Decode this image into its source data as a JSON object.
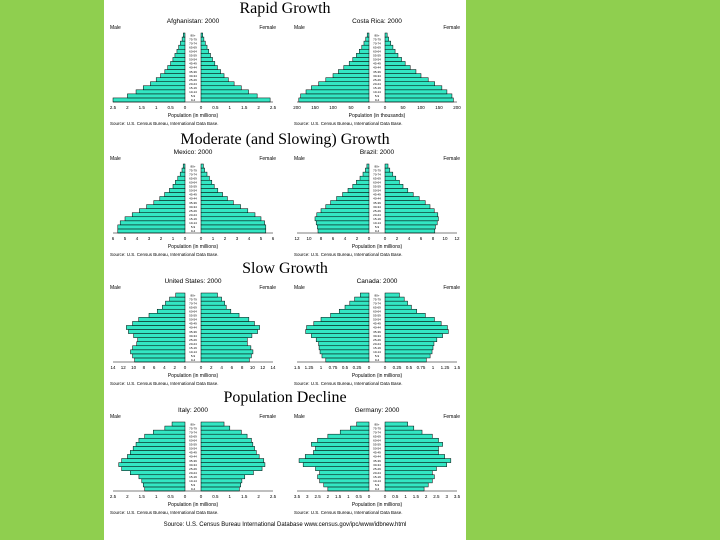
{
  "colors": {
    "background": "#8fcf4f",
    "sheet": "#ffffff",
    "bar_fill": "#33e6c3",
    "bar_stroke": "#000000"
  },
  "sections": [
    {
      "title": "Rapid Growth"
    },
    {
      "title": "Moderate (and Slowing) Growth"
    },
    {
      "title": "Slow Growth"
    },
    {
      "title": "Population Decline"
    }
  ],
  "footer_source": "Source: U.S. Census Bureau International Database www.census.gov/ipc/www/idbnew.html",
  "chart_data": [
    {
      "type": "bar",
      "title": "Afghanistan: 2000",
      "male_label": "Male",
      "female_label": "Female",
      "xlabel": "Population (in millions)",
      "source": "Source: U.S. Census Bureau, International Data Base.",
      "xticks": [
        "2.5",
        "2",
        "1.5",
        "1",
        "0.5",
        "0",
        "0",
        "0.5",
        "1",
        "1.5",
        "2",
        "2.5"
      ],
      "xmax": 2.5,
      "male": [
        2.5,
        2.0,
        1.7,
        1.45,
        1.2,
        1.0,
        0.85,
        0.7,
        0.6,
        0.5,
        0.42,
        0.35,
        0.28,
        0.22,
        0.16,
        0.1,
        0.06
      ],
      "female": [
        2.4,
        1.95,
        1.65,
        1.4,
        1.15,
        0.95,
        0.8,
        0.68,
        0.57,
        0.48,
        0.4,
        0.33,
        0.27,
        0.21,
        0.15,
        0.1,
        0.06
      ]
    },
    {
      "type": "bar",
      "title": "Costa Rica: 2000",
      "male_label": "Male",
      "female_label": "Female",
      "xlabel": "Population (in thousands)",
      "source": "Source: U.S. Census Bureau, International Data Base.",
      "xticks": [
        "200",
        "150",
        "100",
        "50",
        "0",
        "0",
        "50",
        "100",
        "150",
        "200"
      ],
      "xmax": 200,
      "male": [
        195,
        190,
        175,
        160,
        140,
        120,
        100,
        85,
        70,
        55,
        45,
        35,
        27,
        20,
        14,
        9,
        5
      ],
      "female": [
        190,
        186,
        172,
        158,
        138,
        120,
        100,
        86,
        70,
        56,
        46,
        36,
        28,
        22,
        16,
        10,
        6
      ]
    },
    {
      "type": "bar",
      "title": "Mexico: 2000",
      "male_label": "Male",
      "female_label": "Female",
      "xlabel": "Population (in millions)",
      "source": "Source: U.S. Census Bureau, International Data Base.",
      "xticks": [
        "6",
        "5",
        "4",
        "3",
        "2",
        "1",
        "0",
        "0",
        "1",
        "2",
        "3",
        "4",
        "5",
        "6"
      ],
      "xmax": 6,
      "male": [
        5.6,
        5.6,
        5.4,
        5.0,
        4.4,
        3.8,
        3.2,
        2.6,
        2.1,
        1.7,
        1.3,
        1.0,
        0.8,
        0.6,
        0.4,
        0.25,
        0.15
      ],
      "female": [
        5.4,
        5.4,
        5.3,
        5.0,
        4.5,
        3.9,
        3.3,
        2.7,
        2.2,
        1.8,
        1.4,
        1.1,
        0.9,
        0.7,
        0.5,
        0.3,
        0.2
      ]
    },
    {
      "type": "bar",
      "title": "Brazil: 2000",
      "male_label": "Male",
      "female_label": "Female",
      "xlabel": "Population (in millions)",
      "source": "Source: U.S. Census Bureau, International Data Base.",
      "xticks": [
        "12",
        "10",
        "8",
        "6",
        "4",
        "2",
        "0",
        "0",
        "2",
        "4",
        "6",
        "8",
        "10",
        "12"
      ],
      "xmax": 12,
      "male": [
        8.5,
        8.6,
        8.8,
        9.0,
        8.7,
        8.0,
        7.2,
        6.4,
        5.4,
        4.4,
        3.5,
        2.7,
        2.1,
        1.5,
        1.0,
        0.6,
        0.35
      ],
      "female": [
        8.3,
        8.4,
        8.7,
        8.9,
        8.8,
        8.2,
        7.5,
        6.7,
        5.7,
        4.7,
        3.8,
        3.0,
        2.4,
        1.8,
        1.3,
        0.8,
        0.5
      ]
    },
    {
      "type": "bar",
      "title": "United States: 2000",
      "male_label": "Male",
      "female_label": "Female",
      "xlabel": "Population (in millions)",
      "source": "Source: U.S. Census Bureau, International Data Base.",
      "xticks": [
        "14",
        "12",
        "10",
        "8",
        "6",
        "4",
        "2",
        "0",
        "0",
        "2",
        "4",
        "6",
        "8",
        "10",
        "12",
        "14"
      ],
      "xmax": 14,
      "male": [
        9.8,
        10.2,
        10.6,
        10.2,
        9.4,
        9.2,
        10.0,
        11.0,
        11.4,
        10.2,
        9.0,
        7.0,
        5.4,
        4.4,
        3.8,
        3.0,
        1.8
      ],
      "female": [
        9.4,
        9.8,
        10.1,
        9.7,
        9.0,
        9.0,
        9.9,
        11.0,
        11.4,
        10.4,
        9.3,
        7.4,
        5.8,
        4.9,
        4.6,
        4.0,
        3.2
      ]
    },
    {
      "type": "bar",
      "title": "Canada: 2000",
      "male_label": "Male",
      "female_label": "Female",
      "xlabel": "Population (in millions)",
      "source": "Source: U.S. Census Bureau, International Data Base.",
      "xticks": [
        "1.5",
        "1.25",
        "1",
        "0.75",
        "0.5",
        "0.25",
        "0",
        "0",
        "0.25",
        "0.5",
        "0.75",
        "1",
        "1.25",
        "1.5"
      ],
      "xmax": 1.5,
      "male": [
        0.9,
        0.98,
        1.02,
        1.04,
        1.05,
        1.1,
        1.2,
        1.32,
        1.3,
        1.15,
        1.0,
        0.8,
        0.62,
        0.5,
        0.4,
        0.3,
        0.18
      ],
      "female": [
        0.86,
        0.94,
        0.98,
        1.0,
        1.02,
        1.08,
        1.2,
        1.32,
        1.3,
        1.17,
        1.03,
        0.84,
        0.66,
        0.55,
        0.47,
        0.4,
        0.3
      ]
    },
    {
      "type": "bar",
      "title": "Italy: 2000",
      "male_label": "Male",
      "female_label": "Female",
      "xlabel": "Population (in millions)",
      "source": "Source: U.S. Census Bureau, International Data Base.",
      "xticks": [
        "2.5",
        "2",
        "1.5",
        "1",
        "0.5",
        "0",
        "0",
        "0.5",
        "1",
        "1.5",
        "2",
        "2.5"
      ],
      "xmax": 2.5,
      "male": [
        1.4,
        1.45,
        1.5,
        1.6,
        1.9,
        2.2,
        2.3,
        2.2,
        2.0,
        1.9,
        1.8,
        1.7,
        1.6,
        1.4,
        1.1,
        0.7,
        0.45
      ],
      "female": [
        1.33,
        1.38,
        1.42,
        1.52,
        1.82,
        2.12,
        2.22,
        2.18,
        2.02,
        1.92,
        1.86,
        1.8,
        1.75,
        1.6,
        1.4,
        1.0,
        0.8
      ]
    },
    {
      "type": "bar",
      "title": "Germany: 2000",
      "male_label": "Male",
      "female_label": "Female",
      "xlabel": "Population (in millions)",
      "source": "Source: U.S. Census Bureau, International Data Base.",
      "xticks": [
        "3.5",
        "3",
        "2.5",
        "2",
        "1.5",
        "1",
        "0.5",
        "0",
        "0",
        "0.5",
        "1",
        "1.5",
        "2",
        "2.5",
        "3",
        "3.5"
      ],
      "xmax": 3.5,
      "male": [
        2.0,
        2.2,
        2.4,
        2.5,
        2.4,
        2.6,
        3.2,
        3.4,
        3.1,
        2.7,
        2.6,
        2.8,
        2.5,
        2.0,
        1.4,
        0.9,
        0.6
      ],
      "female": [
        1.9,
        2.1,
        2.3,
        2.4,
        2.3,
        2.5,
        3.0,
        3.2,
        2.9,
        2.6,
        2.6,
        2.8,
        2.6,
        2.3,
        1.8,
        1.4,
        1.1
      ]
    }
  ]
}
